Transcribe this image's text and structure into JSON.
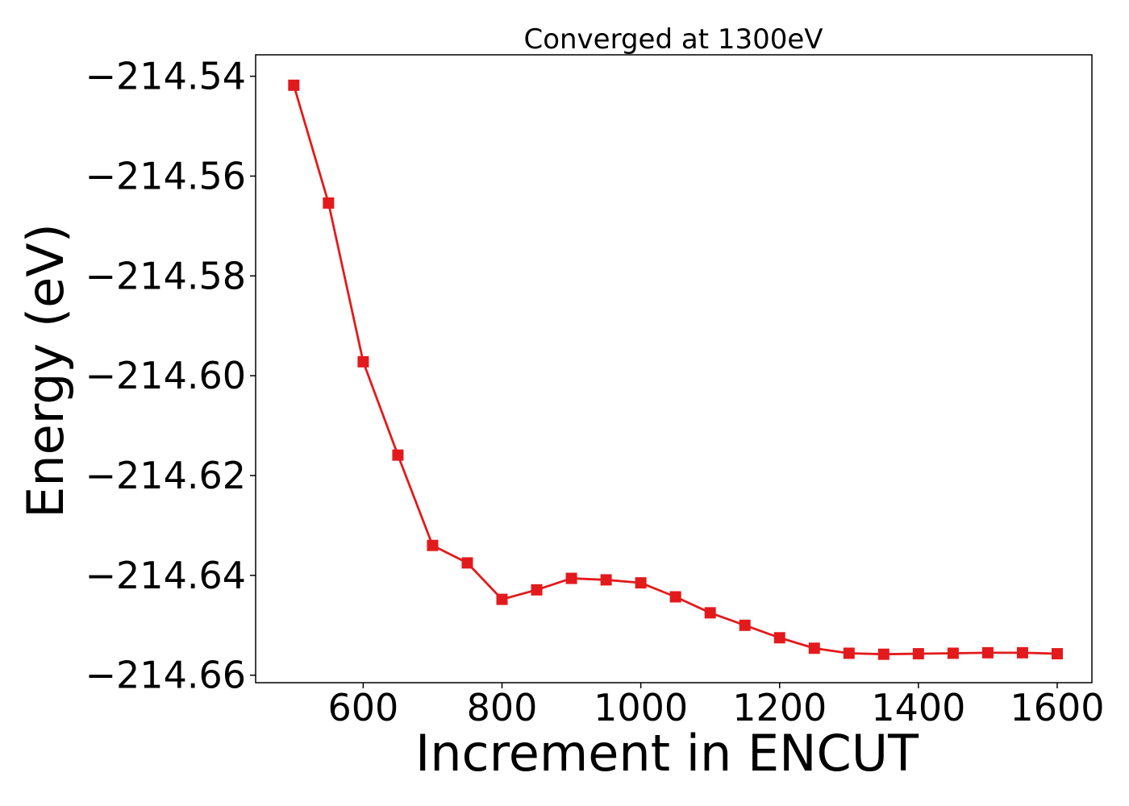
{
  "chart_data": {
    "type": "line",
    "title": "Converged at 1300eV",
    "xlabel": "Increment in ENCUT",
    "ylabel": "Energy (eV)",
    "xlim": [
      445,
      1650
    ],
    "ylim": [
      -214.6615,
      -214.5357
    ],
    "xticks": [
      600,
      800,
      1000,
      1200,
      1400,
      1600
    ],
    "xtick_labels": [
      "600",
      "800",
      "1000",
      "1200",
      "1400",
      "1600"
    ],
    "yticks": [
      -214.54,
      -214.56,
      -214.58,
      -214.6,
      -214.62,
      -214.64,
      -214.66
    ],
    "ytick_labels": [
      "−214.54",
      "−214.56",
      "−214.58",
      "−214.60",
      "−214.62",
      "−214.64",
      "−214.66"
    ],
    "grid": false,
    "series": [
      {
        "name": "Energy",
        "color": "#e31a1c",
        "marker": "square",
        "x": [
          500,
          550,
          600,
          650,
          700,
          750,
          800,
          850,
          900,
          950,
          1000,
          1050,
          1100,
          1150,
          1200,
          1250,
          1300,
          1350,
          1400,
          1450,
          1500,
          1550,
          1600
        ],
        "values": [
          -214.5418,
          -214.5654,
          -214.5972,
          -214.6159,
          -214.634,
          -214.6375,
          -214.6448,
          -214.6429,
          -214.6406,
          -214.6409,
          -214.6415,
          -214.6443,
          -214.6475,
          -214.65,
          -214.6525,
          -214.6546,
          -214.6556,
          -214.6558,
          -214.6557,
          -214.6556,
          -214.6555,
          -214.6555,
          -214.6557
        ]
      }
    ]
  }
}
